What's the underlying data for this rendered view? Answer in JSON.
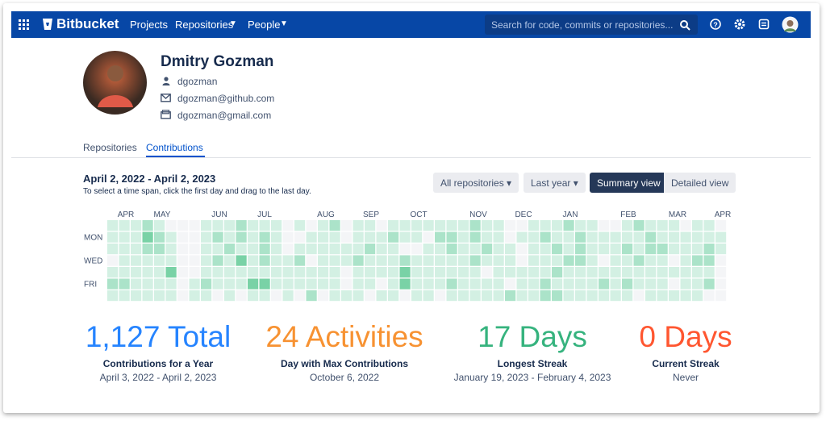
{
  "header": {
    "logo": "Bitbucket",
    "nav": [
      "Projects",
      "Repositories",
      "People"
    ],
    "search_placeholder": "Search for code, commits or repositories..."
  },
  "profile": {
    "name": "Dmitry Gozman",
    "username": "dgozman",
    "emails": [
      "dgozman@github.com",
      "dgozman@gmail.com"
    ]
  },
  "tabs": [
    "Repositories",
    "Contributions"
  ],
  "contributions": {
    "range": "April 2, 2022 - April 2, 2023",
    "hint": "To select a time span, click the first day and drag to the last day.",
    "filters": [
      "All repositories",
      "Last year"
    ],
    "views": [
      "Summary view",
      "Detailed view"
    ],
    "months": [
      "APR",
      "MAY",
      "JUN",
      "JUL",
      "AUG",
      "SEP",
      "OCT",
      "NOV",
      "DEC",
      "JAN",
      "FEB",
      "MAR",
      "APR"
    ],
    "days": [
      "MON",
      "WED",
      "FRI"
    ],
    "levels": [
      [
        1,
        1,
        1,
        2,
        1,
        0,
        0,
        0,
        1,
        1,
        1,
        2,
        1,
        1,
        1,
        0,
        1,
        0,
        1,
        2,
        0,
        1,
        1,
        0,
        1,
        1,
        1,
        1,
        1,
        1,
        1,
        2,
        1,
        1,
        0,
        0,
        1,
        1,
        1,
        2,
        1,
        1,
        0,
        0,
        1,
        2,
        1,
        1,
        1,
        0,
        1,
        1,
        0
      ],
      [
        1,
        1,
        1,
        3,
        2,
        1,
        0,
        0,
        1,
        2,
        1,
        2,
        1,
        2,
        1,
        0,
        0,
        1,
        1,
        1,
        0,
        1,
        1,
        1,
        2,
        1,
        1,
        0,
        2,
        2,
        1,
        2,
        1,
        1,
        0,
        1,
        1,
        2,
        1,
        1,
        2,
        1,
        1,
        1,
        1,
        1,
        2,
        1,
        1,
        1,
        1,
        1,
        1
      ],
      [
        1,
        1,
        1,
        2,
        2,
        1,
        0,
        0,
        1,
        1,
        2,
        1,
        1,
        2,
        1,
        0,
        1,
        1,
        1,
        1,
        1,
        1,
        2,
        1,
        1,
        0,
        0,
        1,
        1,
        2,
        1,
        1,
        2,
        1,
        1,
        0,
        1,
        1,
        2,
        1,
        2,
        1,
        1,
        1,
        2,
        1,
        2,
        2,
        1,
        1,
        1,
        2,
        1
      ],
      [
        0,
        1,
        1,
        1,
        1,
        1,
        0,
        0,
        1,
        2,
        1,
        3,
        1,
        2,
        1,
        1,
        2,
        0,
        1,
        1,
        1,
        2,
        1,
        1,
        1,
        2,
        1,
        1,
        1,
        1,
        1,
        2,
        1,
        1,
        1,
        0,
        1,
        1,
        1,
        2,
        2,
        1,
        0,
        1,
        1,
        2,
        1,
        1,
        0,
        1,
        2,
        2,
        0
      ],
      [
        1,
        1,
        1,
        1,
        1,
        3,
        0,
        0,
        1,
        1,
        1,
        1,
        1,
        1,
        1,
        1,
        1,
        1,
        1,
        1,
        0,
        1,
        1,
        1,
        1,
        3,
        1,
        1,
        1,
        1,
        1,
        1,
        0,
        1,
        1,
        1,
        1,
        1,
        2,
        1,
        1,
        1,
        1,
        1,
        1,
        1,
        1,
        1,
        1,
        1,
        1,
        1,
        0
      ],
      [
        2,
        2,
        1,
        1,
        1,
        1,
        0,
        1,
        2,
        1,
        1,
        1,
        3,
        3,
        1,
        1,
        1,
        1,
        1,
        1,
        0,
        1,
        1,
        0,
        1,
        3,
        1,
        1,
        1,
        2,
        1,
        1,
        1,
        1,
        0,
        1,
        1,
        2,
        1,
        1,
        1,
        1,
        2,
        1,
        2,
        1,
        1,
        1,
        0,
        1,
        1,
        2,
        0
      ],
      [
        1,
        1,
        1,
        1,
        1,
        1,
        0,
        1,
        1,
        0,
        1,
        0,
        1,
        1,
        0,
        1,
        0,
        2,
        0,
        1,
        1,
        1,
        0,
        1,
        1,
        0,
        1,
        1,
        0,
        1,
        1,
        1,
        1,
        1,
        2,
        1,
        1,
        2,
        2,
        1,
        1,
        1,
        1,
        1,
        1,
        0,
        1,
        1,
        1,
        1,
        1,
        0,
        0
      ]
    ]
  },
  "stats": [
    {
      "value": "1,127 Total",
      "label": "Contributions for a Year",
      "detail": "April 3, 2022 - April 2, 2023"
    },
    {
      "value": "24 Activities",
      "label": "Day with Max Contributions",
      "detail": "October 6, 2022"
    },
    {
      "value": "17 Days",
      "label": "Longest Streak",
      "detail": "January 19, 2023 - February 4, 2023"
    },
    {
      "value": "0 Days",
      "label": "Current Streak",
      "detail": "Never"
    }
  ]
}
